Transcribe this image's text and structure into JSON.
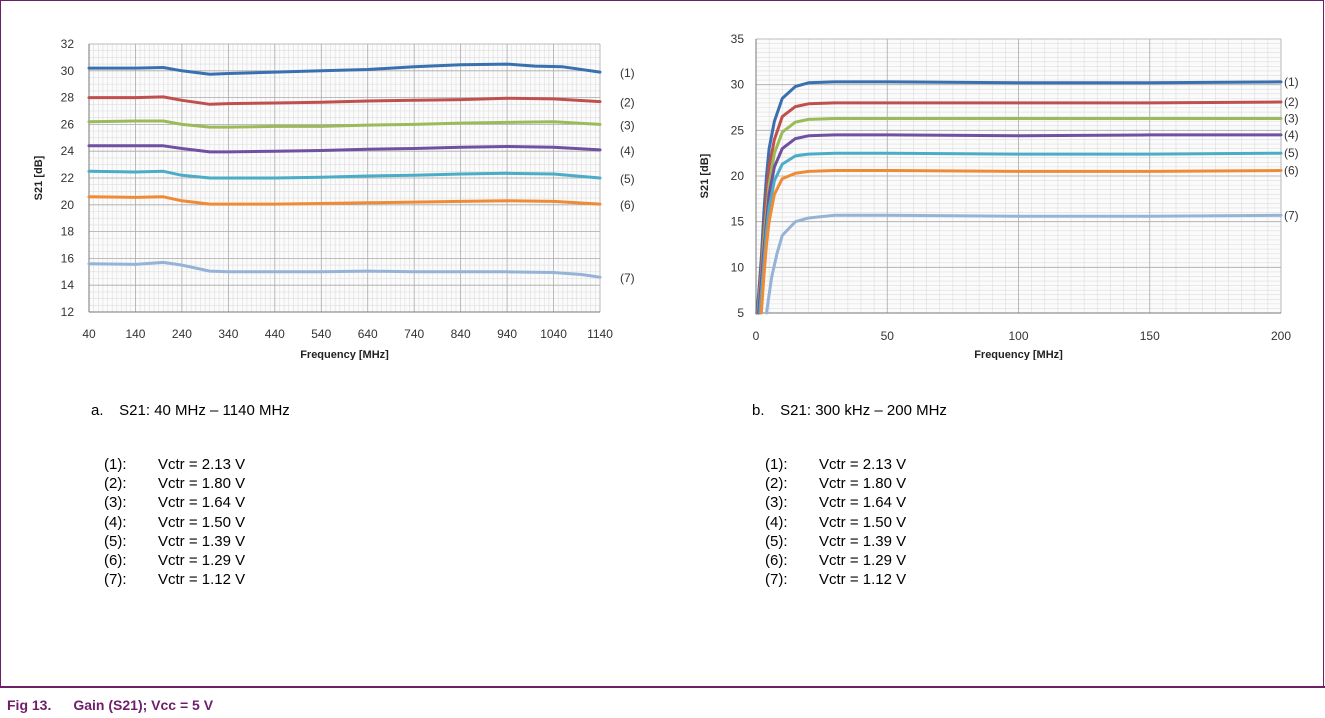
{
  "chart_data": [
    {
      "type": "line",
      "caption_letter": "a.",
      "caption_text": "S21: 40 MHz – 1140 MHz",
      "xlabel": "Frequency [MHz]",
      "ylabel": "S21 [dB]",
      "xlim": [
        40,
        1140
      ],
      "ylim": [
        12,
        32
      ],
      "xticks": [
        40,
        140,
        240,
        340,
        440,
        540,
        640,
        740,
        840,
        940,
        1040,
        1140
      ],
      "yticks": [
        12,
        14,
        16,
        18,
        20,
        22,
        24,
        26,
        28,
        30,
        32
      ],
      "grid": true,
      "series": [
        {
          "name": "(1)",
          "color": "#3a6fb0",
          "x": [
            40,
            140,
            200,
            240,
            300,
            340,
            440,
            540,
            640,
            740,
            840,
            940,
            1000,
            1060,
            1140
          ],
          "y": [
            30.2,
            30.2,
            30.25,
            30.0,
            29.75,
            29.8,
            29.9,
            30.0,
            30.1,
            30.3,
            30.45,
            30.5,
            30.35,
            30.3,
            29.9
          ]
        },
        {
          "name": "(2)",
          "color": "#c0504d",
          "x": [
            40,
            140,
            200,
            240,
            300,
            340,
            440,
            540,
            640,
            740,
            840,
            940,
            1040,
            1140
          ],
          "y": [
            28.0,
            28.0,
            28.05,
            27.8,
            27.5,
            27.55,
            27.6,
            27.65,
            27.75,
            27.8,
            27.85,
            27.95,
            27.9,
            27.7
          ]
        },
        {
          "name": "(3)",
          "color": "#9bbb59",
          "x": [
            40,
            140,
            200,
            240,
            300,
            340,
            440,
            540,
            640,
            740,
            840,
            940,
            1040,
            1140
          ],
          "y": [
            26.2,
            26.25,
            26.25,
            26.0,
            25.8,
            25.8,
            25.85,
            25.85,
            25.95,
            26.0,
            26.1,
            26.15,
            26.2,
            26.0
          ]
        },
        {
          "name": "(4)",
          "color": "#7050a0",
          "x": [
            40,
            140,
            200,
            240,
            300,
            340,
            440,
            540,
            640,
            740,
            840,
            940,
            1040,
            1140
          ],
          "y": [
            24.4,
            24.4,
            24.4,
            24.2,
            23.95,
            23.95,
            24.0,
            24.05,
            24.15,
            24.2,
            24.3,
            24.35,
            24.3,
            24.1
          ]
        },
        {
          "name": "(5)",
          "color": "#4aacc6",
          "x": [
            40,
            140,
            200,
            240,
            300,
            340,
            440,
            540,
            640,
            740,
            840,
            940,
            1040,
            1140
          ],
          "y": [
            22.5,
            22.45,
            22.5,
            22.2,
            22.0,
            22.0,
            22.0,
            22.05,
            22.15,
            22.2,
            22.3,
            22.35,
            22.3,
            22.0
          ]
        },
        {
          "name": "(6)",
          "color": "#f08a35",
          "x": [
            40,
            140,
            200,
            240,
            300,
            340,
            440,
            540,
            640,
            740,
            840,
            940,
            1040,
            1140
          ],
          "y": [
            20.6,
            20.55,
            20.6,
            20.3,
            20.05,
            20.05,
            20.05,
            20.1,
            20.15,
            20.2,
            20.25,
            20.3,
            20.25,
            20.05
          ]
        },
        {
          "name": "(7)",
          "color": "#95b3d7",
          "x": [
            40,
            140,
            200,
            240,
            300,
            340,
            440,
            540,
            640,
            740,
            840,
            940,
            1040,
            1100,
            1140
          ],
          "y": [
            15.6,
            15.55,
            15.7,
            15.5,
            15.05,
            15.0,
            15.0,
            15.0,
            15.05,
            15.0,
            15.0,
            15.0,
            14.95,
            14.8,
            14.6
          ]
        }
      ]
    },
    {
      "type": "line",
      "caption_letter": "b.",
      "caption_text": "S21: 300 kHz – 200 MHz",
      "xlabel": "Frequency [MHz]",
      "ylabel": "S21 [dB]",
      "xlim": [
        0,
        200
      ],
      "ylim": [
        5,
        35
      ],
      "xticks": [
        0,
        50,
        100,
        150,
        200
      ],
      "yticks": [
        5,
        10,
        15,
        20,
        25,
        30,
        35
      ],
      "grid": true,
      "series": [
        {
          "name": "(1)",
          "color": "#3a6fb0",
          "x": [
            0.3,
            1,
            2,
            3,
            4,
            5,
            7,
            10,
            15,
            20,
            30,
            50,
            100,
            150,
            200
          ],
          "y": [
            5,
            7,
            11,
            16,
            20,
            23,
            26,
            28.5,
            29.8,
            30.2,
            30.3,
            30.3,
            30.2,
            30.2,
            30.3
          ]
        },
        {
          "name": "(2)",
          "color": "#c0504d",
          "x": [
            0.5,
            1,
            2,
            3,
            4,
            5,
            7,
            10,
            15,
            20,
            30,
            50,
            100,
            150,
            200
          ],
          "y": [
            5,
            6,
            10,
            14,
            18,
            21,
            24,
            26.5,
            27.6,
            27.9,
            28.0,
            28.0,
            28.0,
            28.0,
            28.1
          ]
        },
        {
          "name": "(3)",
          "color": "#9bbb59",
          "x": [
            0.8,
            1,
            2,
            3,
            4,
            5,
            7,
            10,
            15,
            20,
            30,
            50,
            100,
            150,
            200
          ],
          "y": [
            5,
            5.8,
            9,
            13,
            16,
            19,
            22.5,
            24.8,
            25.9,
            26.2,
            26.3,
            26.3,
            26.3,
            26.3,
            26.3
          ]
        },
        {
          "name": "(4)",
          "color": "#7050a0",
          "x": [
            1,
            2,
            3,
            4,
            5,
            7,
            10,
            15,
            20,
            30,
            50,
            100,
            150,
            200
          ],
          "y": [
            5,
            8.5,
            12,
            15,
            18,
            21,
            23,
            24.1,
            24.4,
            24.5,
            24.5,
            24.4,
            24.5,
            24.5
          ]
        },
        {
          "name": "(5)",
          "color": "#4aacc6",
          "x": [
            1.5,
            2,
            3,
            4,
            5,
            7,
            10,
            15,
            20,
            30,
            50,
            100,
            150,
            200
          ],
          "y": [
            5,
            7,
            10.5,
            14,
            16.5,
            19.5,
            21.3,
            22.2,
            22.4,
            22.5,
            22.5,
            22.4,
            22.4,
            22.5
          ]
        },
        {
          "name": "(6)",
          "color": "#f08a35",
          "x": [
            2,
            3,
            4,
            5,
            7,
            10,
            15,
            20,
            30,
            50,
            100,
            150,
            200
          ],
          "y": [
            5,
            9,
            12.5,
            15,
            18,
            19.7,
            20.3,
            20.5,
            20.6,
            20.6,
            20.5,
            20.5,
            20.6
          ]
        },
        {
          "name": "(7)",
          "color": "#95b3d7",
          "x": [
            4,
            5,
            6,
            8,
            10,
            15,
            20,
            30,
            50,
            100,
            150,
            200
          ],
          "y": [
            5,
            7,
            9,
            11.5,
            13.5,
            15,
            15.4,
            15.7,
            15.7,
            15.6,
            15.6,
            15.7
          ]
        }
      ]
    }
  ],
  "legend_left": [
    {
      "key": "(1):",
      "value": "Vctr = 2.13 V"
    },
    {
      "key": "(2):",
      "value": "Vctr = 1.80 V"
    },
    {
      "key": "(3):",
      "value": "Vctr = 1.64 V"
    },
    {
      "key": "(4):",
      "value": "Vctr = 1.50 V"
    },
    {
      "key": "(5):",
      "value": "Vctr = 1.39 V"
    },
    {
      "key": "(6):",
      "value": "Vctr = 1.29 V"
    },
    {
      "key": "(7):",
      "value": "Vctr = 1.12 V"
    }
  ],
  "legend_right": [
    {
      "key": "(1):",
      "value": "Vctr = 2.13 V"
    },
    {
      "key": "(2):",
      "value": "Vctr = 1.80 V"
    },
    {
      "key": "(3):",
      "value": "Vctr = 1.64 V"
    },
    {
      "key": "(4):",
      "value": "Vctr = 1.50 V"
    },
    {
      "key": "(5):",
      "value": "Vctr = 1.39 V"
    },
    {
      "key": "(6):",
      "value": "Vctr = 1.29 V"
    },
    {
      "key": "(7):",
      "value": "Vctr = 1.12 V"
    }
  ],
  "figure": {
    "number": "Fig 13.",
    "title": "Gain (S21); Vcc = 5 V"
  }
}
